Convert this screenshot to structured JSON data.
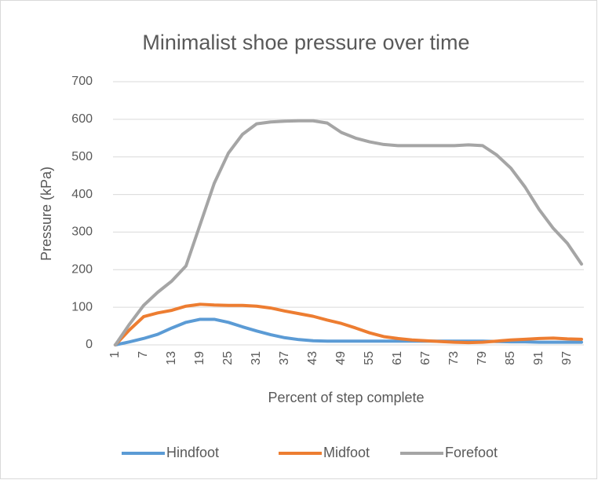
{
  "chart_data": {
    "type": "line",
    "title": "Minimalist shoe pressure over time",
    "x_label": "Percent of step complete",
    "y_label": "Pressure (kPa)",
    "categories": [
      1,
      null,
      7,
      null,
      13,
      null,
      19,
      null,
      25,
      null,
      31,
      null,
      37,
      null,
      43,
      null,
      49,
      null,
      55,
      null,
      61,
      null,
      67,
      null,
      73,
      null,
      79,
      null,
      85,
      null,
      91,
      null,
      97,
      null
    ],
    "series": [
      {
        "name": "Hindfoot",
        "color": "#5b9bd5",
        "values": [
          0,
          8,
          17,
          28,
          45,
          60,
          68,
          68,
          60,
          48,
          37,
          27,
          19,
          14,
          11,
          10,
          10,
          10,
          10,
          10,
          10,
          10,
          10,
          10,
          10,
          10,
          10,
          9,
          8,
          8,
          7,
          7,
          7,
          7
        ]
      },
      {
        "name": "Midfoot",
        "color": "#ed7d31",
        "values": [
          0,
          40,
          75,
          85,
          92,
          103,
          108,
          106,
          105,
          105,
          103,
          98,
          90,
          83,
          76,
          66,
          57,
          45,
          32,
          22,
          17,
          13,
          11,
          9,
          7,
          6,
          7,
          10,
          13,
          15,
          17,
          18,
          16,
          15
        ]
      },
      {
        "name": "Forefoot",
        "color": "#a5a5a5",
        "values": [
          0,
          55,
          105,
          140,
          170,
          210,
          320,
          430,
          510,
          560,
          588,
          593,
          595,
          596,
          596,
          590,
          565,
          550,
          540,
          533,
          530,
          530,
          530,
          530,
          530,
          532,
          530,
          505,
          470,
          420,
          360,
          310,
          270,
          215
        ]
      }
    ],
    "ylim": [
      0,
      700
    ],
    "yticks": [
      0,
      100,
      200,
      300,
      400,
      500,
      600,
      700
    ],
    "grid": true,
    "legend": "bottom"
  }
}
